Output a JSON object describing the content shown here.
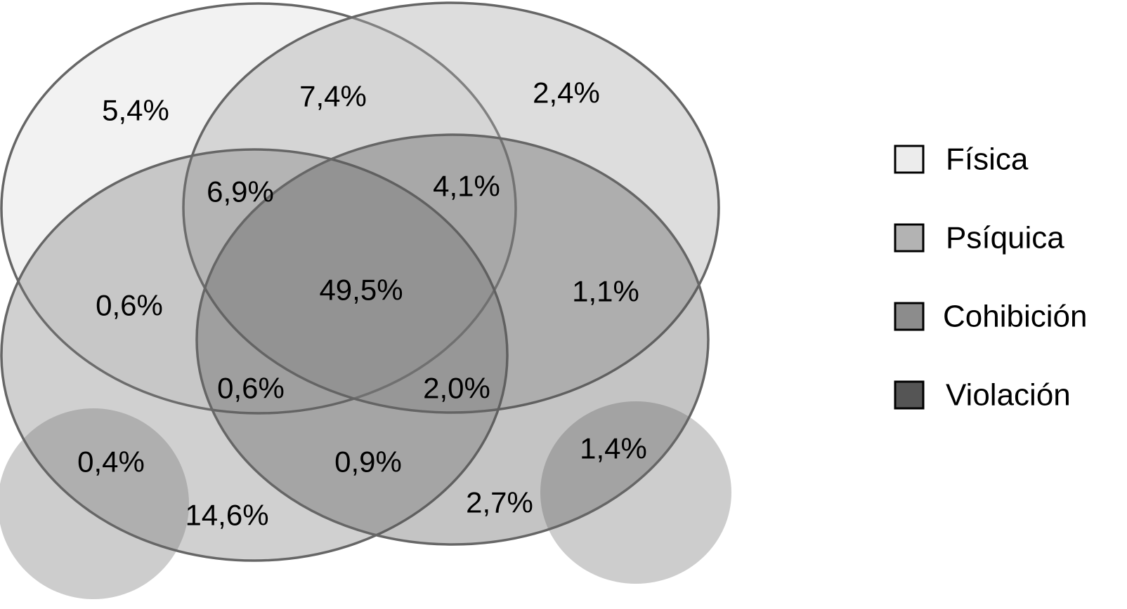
{
  "sets": [
    {
      "name": "Física",
      "fill": "#eeeeee",
      "fill_opacity": 0.75
    },
    {
      "name": "Psíquica",
      "fill": "#aaaaaa",
      "fill_opacity": 0.4
    },
    {
      "name": "Cohibición",
      "fill": "#777777",
      "fill_opacity": 0.35
    },
    {
      "name": "Violación",
      "fill": "#555555",
      "fill_opacity": 0.35
    }
  ],
  "extra_circles": [
    {
      "fill": "#b8b8b8",
      "fill_opacity": 0.7
    },
    {
      "fill": "#b8b8b8",
      "fill_opacity": 0.7
    }
  ],
  "region_values": [
    "5,4%",
    "7,4%",
    "2,4%",
    "6,9%",
    "4,1%",
    "0,6%",
    "49,5%",
    "1,1%",
    "0,6%",
    "2,0%",
    "0,4%",
    "0,9%",
    "1,4%",
    "14,6%",
    "2,7%"
  ],
  "legend": {
    "items": [
      {
        "label": "Física",
        "swatch": "#ececec"
      },
      {
        "label": "Psíquica",
        "swatch": "#b3b3b3"
      },
      {
        "label": "Cohibición",
        "swatch": "#8c8c8c"
      },
      {
        "label": "Violación",
        "swatch": "#555555"
      }
    ]
  },
  "stroke_color": "#666666"
}
